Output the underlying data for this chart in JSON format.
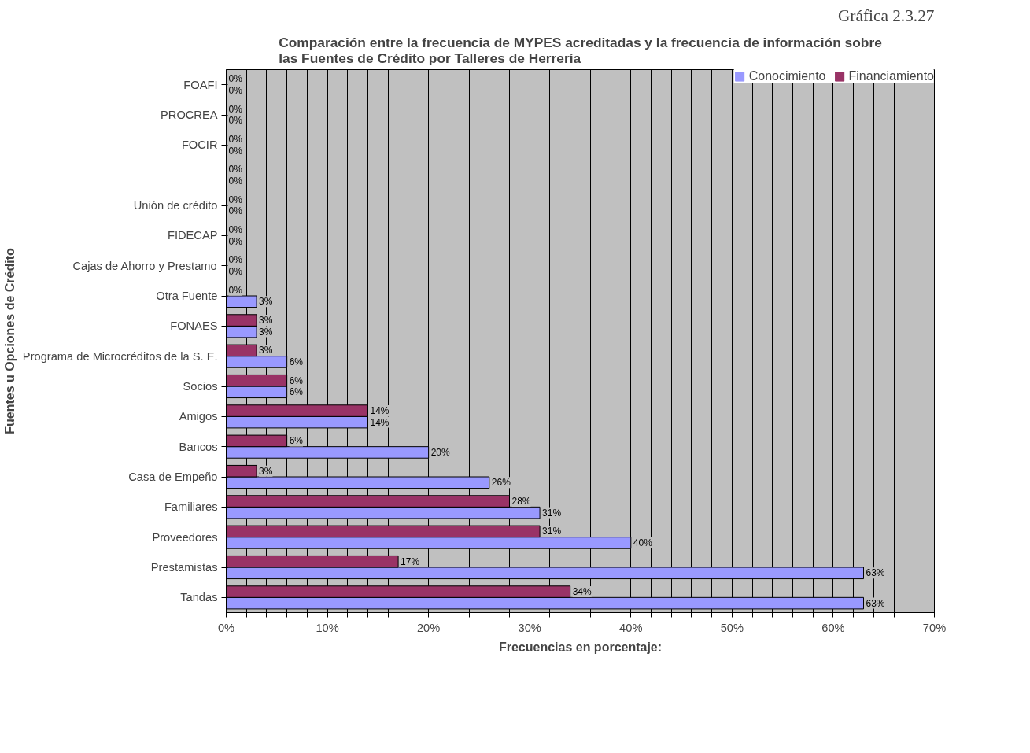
{
  "chart_data": {
    "type": "bar",
    "orientation": "horizontal",
    "title": "Comparación entre la frecuencia de MYPES acreditadas y la frecuencia de información sobre las Fuentes de Crédito por Talleres de Herrería",
    "xlabel": "Frecuencias en porcentaje:",
    "ylabel": "Fuentes u Opciones de Crédito",
    "annotations": [
      "Gráfica 2.3.27"
    ],
    "categories": [
      "FOAFI",
      "PROCREA",
      "FOCIR",
      null,
      "Unión de crédito",
      "FIDECAP",
      "Cajas de Ahorro y Prestamo",
      "Otra Fuente",
      "FONAES",
      "Programa de Microcréditos de la S. E.",
      "Socios",
      "Amigos",
      "Bancos",
      "Casa de Empeño",
      "Familiares",
      "Proveedores",
      "Prestamistas",
      "Tandas"
    ],
    "series": [
      {
        "name": "Conocimiento",
        "color": "#9999ff",
        "values": [
          0,
          0,
          0,
          0,
          0,
          0,
          0,
          3,
          3,
          6,
          6,
          14,
          20,
          26,
          31,
          40,
          63,
          63
        ],
        "value_labels": [
          "0%",
          "0%",
          "0%",
          "0%",
          "0%",
          "0%",
          "0%",
          "3%",
          "3%",
          "6%",
          "6%",
          "14%",
          "20%",
          "26%",
          "31%",
          "40%",
          "63%",
          "63%"
        ]
      },
      {
        "name": "Financiamiento",
        "color": "#993366",
        "values": [
          0,
          0,
          0,
          0,
          0,
          0,
          0,
          0,
          3,
          3,
          6,
          14,
          6,
          3,
          28,
          31,
          17,
          34
        ],
        "value_labels": [
          "0%",
          "0%",
          "0%",
          "0%",
          "0%",
          "0%",
          "0%",
          "0%",
          "3%",
          "3%",
          "6%",
          "14%",
          "6%",
          "3%",
          "28%",
          "31%",
          "17%",
          "34%"
        ]
      }
    ],
    "xlim": [
      0,
      70
    ],
    "xticks": [
      {
        "value": 0,
        "label": "0%"
      },
      {
        "value": 2,
        "label": null
      },
      {
        "value": 4,
        "label": null
      },
      {
        "value": 6,
        "label": null
      },
      {
        "value": 8,
        "label": null
      },
      {
        "value": 10,
        "label": "10%"
      },
      {
        "value": 12,
        "label": null
      },
      {
        "value": 14,
        "label": null
      },
      {
        "value": 16,
        "label": null
      },
      {
        "value": 18,
        "label": null
      },
      {
        "value": 20,
        "label": "20%"
      },
      {
        "value": 22,
        "label": null
      },
      {
        "value": 24,
        "label": null
      },
      {
        "value": 26,
        "label": null
      },
      {
        "value": 28,
        "label": null
      },
      {
        "value": 30,
        "label": "30%"
      },
      {
        "value": 32,
        "label": null
      },
      {
        "value": 34,
        "label": null
      },
      {
        "value": 36,
        "label": null
      },
      {
        "value": 38,
        "label": null
      },
      {
        "value": 40,
        "label": "40%"
      },
      {
        "value": 42,
        "label": null
      },
      {
        "value": 44,
        "label": null
      },
      {
        "value": 46,
        "label": null
      },
      {
        "value": 48,
        "label": null
      },
      {
        "value": 50,
        "label": "50%"
      },
      {
        "value": 52,
        "label": null
      },
      {
        "value": 54,
        "label": null
      },
      {
        "value": 56,
        "label": null
      },
      {
        "value": 58,
        "label": null
      },
      {
        "value": 60,
        "label": "60%"
      },
      {
        "value": 62,
        "label": null
      },
      {
        "value": 64,
        "label": null
      },
      {
        "value": 66,
        "label": null
      },
      {
        "value": 68,
        "label": null
      },
      {
        "value": 70,
        "label": "70%"
      }
    ],
    "grid": "x",
    "legend": "top right"
  }
}
